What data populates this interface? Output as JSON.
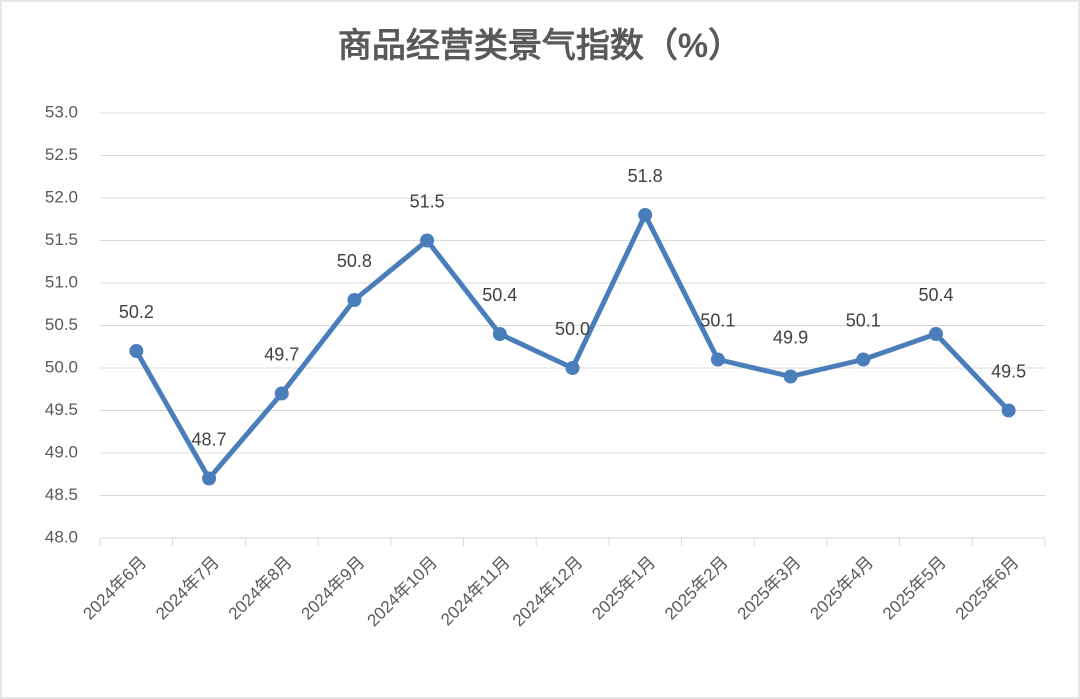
{
  "chart_data": {
    "type": "line",
    "title": "商品经营类景气指数（%）",
    "categories": [
      "2024年6月",
      "2024年7月",
      "2024年8月",
      "2024年9月",
      "2024年10月",
      "2024年11月",
      "2024年12月",
      "2025年1月",
      "2025年2月",
      "2025年3月",
      "2025年4月",
      "2025年5月",
      "2025年6月"
    ],
    "values": [
      50.2,
      48.7,
      49.7,
      50.8,
      51.5,
      50.4,
      50,
      51.8,
      50.1,
      49.9,
      50.1,
      50.4,
      49.5
    ],
    "value_labels": [
      "50.2",
      "48.7",
      "49.7",
      "50.8",
      "51.5",
      "50.4",
      "50.0",
      "51.8",
      "50.1",
      "49.9",
      "50.1",
      "50.4",
      "49.5"
    ],
    "color": "#4a7ebb",
    "ylim": [
      48,
      53
    ],
    "yticks": [
      {
        "value": 48,
        "label": "48.0"
      },
      {
        "value": 48.5,
        "label": "48.5"
      },
      {
        "value": 49,
        "label": "49.0"
      },
      {
        "value": 49.5,
        "label": "49.5"
      },
      {
        "value": 50,
        "label": "50.0"
      },
      {
        "value": 50.5,
        "label": "50.5"
      },
      {
        "value": 51,
        "label": "51.0"
      },
      {
        "value": 51.5,
        "label": "51.5"
      },
      {
        "value": 52,
        "label": "52.0"
      },
      {
        "value": 52.5,
        "label": "52.5"
      },
      {
        "value": 53,
        "label": "53.0"
      }
    ],
    "grid": true
  }
}
